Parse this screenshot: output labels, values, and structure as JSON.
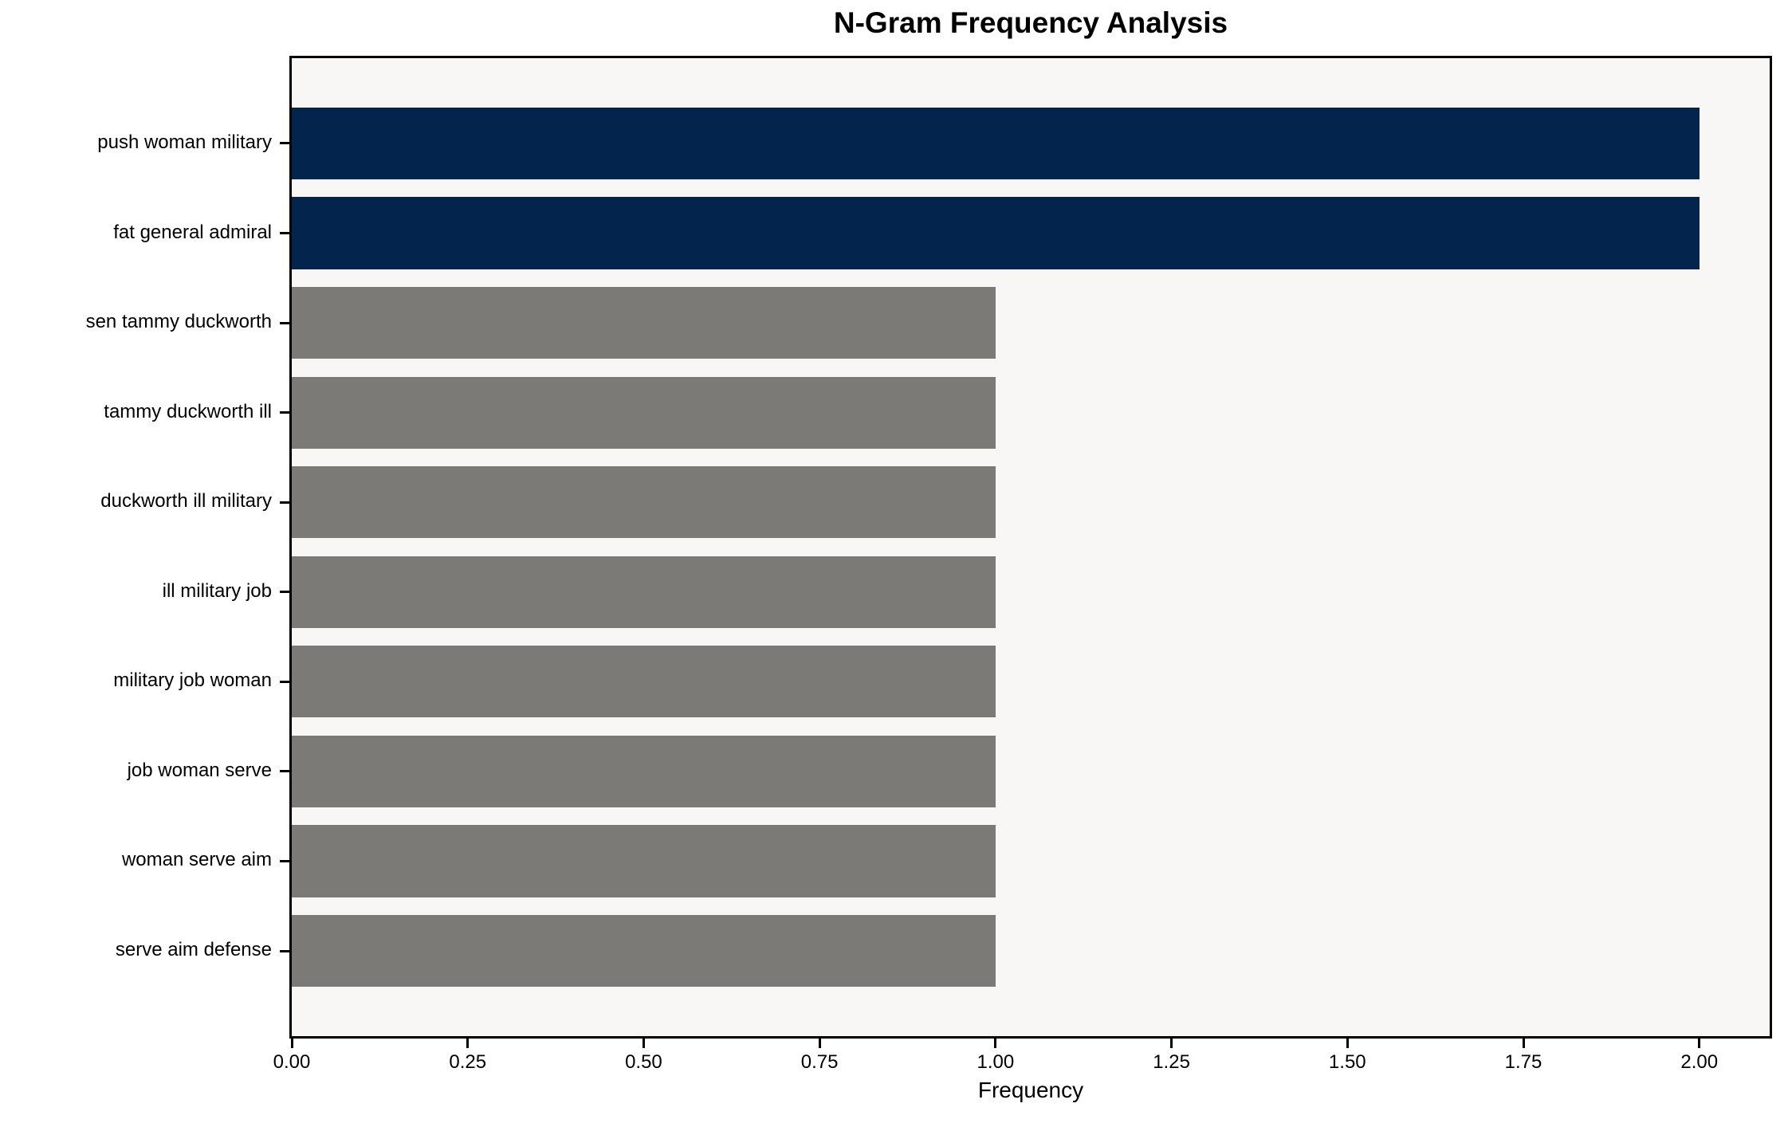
{
  "chart_data": {
    "type": "bar",
    "orientation": "horizontal",
    "title": "N-Gram Frequency Analysis",
    "xlabel": "Frequency",
    "ylabel": "",
    "categories": [
      "push woman military",
      "fat general admiral",
      "sen tammy duckworth",
      "tammy duckworth ill",
      "duckworth ill military",
      "ill military job",
      "military job woman",
      "job woman serve",
      "woman serve aim",
      "serve aim defense"
    ],
    "values": [
      2,
      2,
      1,
      1,
      1,
      1,
      1,
      1,
      1,
      1
    ],
    "bar_colors": [
      "#03254d",
      "#03254d",
      "#7b7a77",
      "#7b7a77",
      "#7b7a77",
      "#7b7a77",
      "#7b7a77",
      "#7b7a77",
      "#7b7a77",
      "#7b7a77"
    ],
    "x_ticks": [
      "0.00",
      "0.25",
      "0.50",
      "0.75",
      "1.00",
      "1.25",
      "1.50",
      "1.75",
      "2.00"
    ],
    "x_tick_values": [
      0,
      0.25,
      0.5,
      0.75,
      1,
      1.25,
      1.5,
      1.75,
      2
    ],
    "xlim": [
      0,
      2.1
    ],
    "grid": false,
    "legend": "none",
    "colors": {
      "highlight_bar": "#03254d",
      "default_bar": "#7b7a77",
      "plot_background": "#f8f7f5",
      "figure_background": "#ffffff",
      "frame": "#000000",
      "text": "#000000"
    }
  }
}
